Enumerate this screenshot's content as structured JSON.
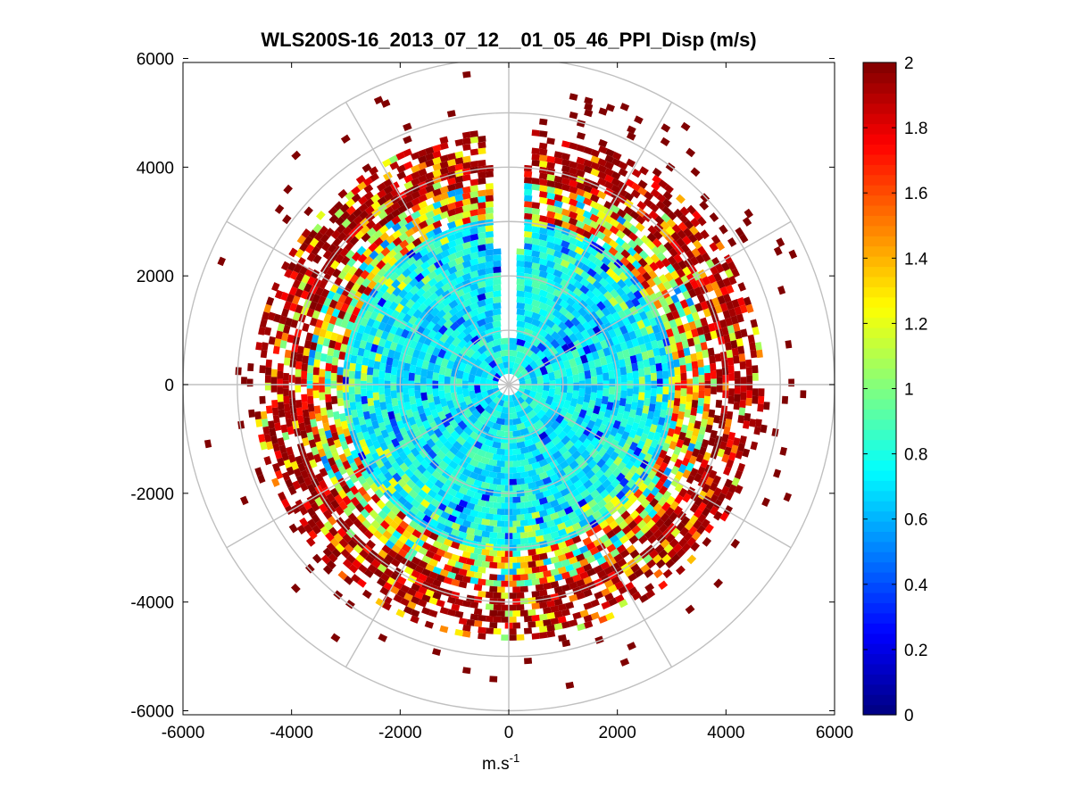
{
  "chart_data": [
    {
      "type": "heatmap",
      "subtype": "polar-ppi",
      "title": "WLS200S-16_2013_07_12__01_05_46_PPI_Disp (m/s)",
      "xlabel": "m.s",
      "xlabel_superscript": "-1",
      "ylabel": "",
      "xlim": [
        -6000,
        6000
      ],
      "ylim": [
        -6000,
        6000
      ],
      "xticks": [
        -6000,
        -4000,
        -2000,
        0,
        2000,
        4000,
        6000
      ],
      "yticks": [
        6000,
        4000,
        2000,
        0,
        -2000,
        -4000,
        -6000
      ],
      "xtick_labels": [
        "-6000",
        "-4000",
        "-2000",
        "0",
        "2000",
        "4000",
        "6000"
      ],
      "ytick_labels": [
        "6000",
        "4000",
        "2000",
        "0",
        "-2000",
        "-4000",
        "-6000"
      ],
      "polar_grid_rings": [
        1000,
        2000,
        3000,
        4000,
        5000,
        6000
      ],
      "polar_grid_spokes_deg": [
        0,
        30,
        60,
        90,
        120,
        150,
        180,
        210,
        240,
        270,
        300,
        330
      ],
      "range_bins": [
        200,
        5800
      ],
      "range_zones": [
        {
          "from": 0,
          "to": 3000,
          "typical_value": 0.75,
          "description": "cyan/light blue core with scattered blue"
        },
        {
          "from": 3000,
          "to": 3700,
          "typical_value": 1.3,
          "description": "mixed green/yellow/red transition"
        },
        {
          "from": 3700,
          "to": 4700,
          "typical_value": 1.9,
          "description": "dark red / red outer band"
        },
        {
          "from": 4700,
          "to": 6000,
          "typical_value": 2.0,
          "description": "sparse dark red isolated returns"
        }
      ],
      "missing_sector_deg": [
        -5,
        5
      ],
      "colorbar": {
        "colormap": "jet",
        "min": 0,
        "max": 2,
        "ticks": [
          0,
          0.2,
          0.4,
          0.6,
          0.8,
          1,
          1.2,
          1.4,
          1.6,
          1.8,
          2
        ],
        "tick_labels": [
          "0",
          "0.2",
          "0.4",
          "0.6",
          "0.8",
          "1",
          "1.2",
          "1.4",
          "1.6",
          "1.8",
          "2"
        ]
      },
      "grid": true,
      "grid_color": "#c0c0c0"
    }
  ]
}
